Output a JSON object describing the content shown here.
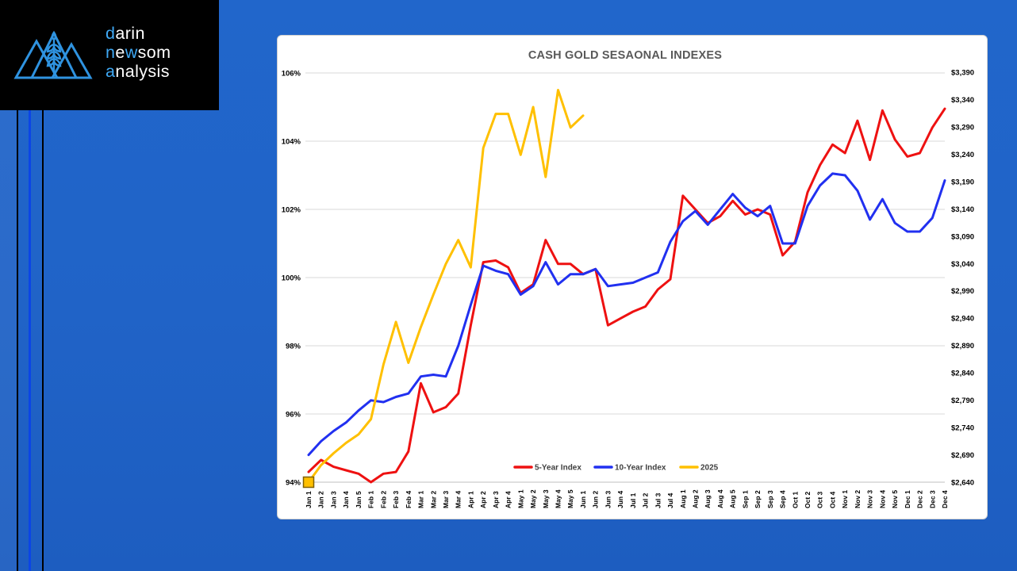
{
  "logo": {
    "accent_color": "#3fa9f5",
    "text_color": "#ffffff",
    "icon_color": "#2f93e0",
    "lines": [
      [
        {
          "t": "d",
          "accent": true
        },
        {
          "t": "arin",
          "accent": false
        }
      ],
      [
        {
          "t": "n",
          "accent": true
        },
        {
          "t": "e",
          "accent": false
        },
        {
          "t": "w",
          "accent": true
        },
        {
          "t": "som",
          "accent": false
        }
      ],
      [
        {
          "t": "a",
          "accent": true
        },
        {
          "t": "nalysis",
          "accent": false
        }
      ]
    ]
  },
  "chart_data": {
    "type": "line",
    "title": "CASH GOLD SESAONAL INDEXES",
    "title_color": "#595959",
    "grid": true,
    "legend_position": "bottom-center",
    "plot_bg": "#ffffff",
    "grid_color": "#d9d9d9",
    "categories": [
      "Jan 1",
      "Jan 2",
      "Jan 3",
      "Jan 4",
      "Jan 5",
      "Feb 1",
      "Feb 2",
      "Feb 3",
      "Feb 4",
      "Mar 1",
      "Mar 2",
      "Mar 3",
      "Mar 4",
      "Apr 1",
      "Apr 2",
      "Apr 3",
      "Apr 4",
      "May 1",
      "May 2",
      "May 3",
      "May 4",
      "May 5",
      "Jun 1",
      "Jun 2",
      "Jun 3",
      "Jun 4",
      "Jul 1",
      "Jul 2",
      "Jul 3",
      "Jul 4",
      "Aug 1",
      "Aug 2",
      "Aug 3",
      "Aug 4",
      "Aug 5",
      "Sep 1",
      "Sep 2",
      "Sep 3",
      "Sep 4",
      "Oct 1",
      "Oct 2",
      "Oct 3",
      "Oct 4",
      "Nov 1",
      "Nov 2",
      "Nov 3",
      "Nov 4",
      "Nov 5",
      "Dec 1",
      "Dec 2",
      "Dec 3",
      "Dec 4"
    ],
    "left_axis": {
      "unit": "%",
      "min": 94,
      "max": 106,
      "step": 2,
      "ticks": [
        "106%",
        "104%",
        "102%",
        "100%",
        "98%",
        "96%",
        "94%"
      ]
    },
    "right_axis": {
      "unit": "$",
      "min": 2640,
      "max": 3390,
      "step": 50,
      "ticks": [
        "$3,390",
        "$3,340",
        "$3,290",
        "$3,240",
        "$3,190",
        "$3,140",
        "$3,090",
        "$3,040",
        "$2,990",
        "$2,940",
        "$2,890",
        "$2,840",
        "$2,790",
        "$2,740",
        "$2,690",
        "$2,640"
      ]
    },
    "series": [
      {
        "name": "5-Year Index",
        "color": "#ee1111",
        "values": [
          94.3,
          94.65,
          94.45,
          94.35,
          94.25,
          94.0,
          94.25,
          94.3,
          94.9,
          96.9,
          96.05,
          96.2,
          96.6,
          98.6,
          100.45,
          100.5,
          100.3,
          99.55,
          99.8,
          101.1,
          100.4,
          100.4,
          100.1,
          100.25,
          98.6,
          98.8,
          99.0,
          99.15,
          99.65,
          99.95,
          102.4,
          102.0,
          101.6,
          101.8,
          102.25,
          101.85,
          102.0,
          101.85,
          100.65,
          101.05,
          102.5,
          103.3,
          103.9,
          103.65,
          104.6,
          103.45,
          104.9,
          104.05,
          103.55,
          103.65,
          104.4,
          104.95
        ]
      },
      {
        "name": "10-Year Index",
        "color": "#2130f0",
        "values": [
          94.8,
          95.2,
          95.5,
          95.75,
          96.1,
          96.4,
          96.35,
          96.5,
          96.6,
          97.1,
          97.15,
          97.1,
          98.0,
          99.2,
          100.35,
          100.2,
          100.1,
          99.5,
          99.75,
          100.45,
          99.8,
          100.1,
          100.1,
          100.25,
          99.75,
          99.8,
          99.85,
          100.0,
          100.15,
          101.05,
          101.65,
          101.95,
          101.55,
          102.0,
          102.45,
          102.05,
          101.8,
          102.1,
          101.0,
          101.0,
          102.1,
          102.7,
          103.05,
          103.0,
          102.55,
          101.7,
          102.3,
          101.6,
          101.35,
          101.35,
          101.75,
          102.85
        ]
      },
      {
        "name": "2025",
        "color": "#ffc000",
        "start_marker": {
          "shape": "square",
          "fill": "#ffc000",
          "stroke": "#7f6000"
        },
        "values": [
          94.0,
          94.5,
          94.85,
          95.15,
          95.4,
          95.85,
          97.45,
          98.7,
          97.5,
          98.55,
          99.5,
          100.4,
          101.1,
          100.3,
          103.8,
          104.8,
          104.8,
          103.6,
          105.0,
          102.95,
          105.5,
          104.4,
          104.75
        ]
      }
    ]
  }
}
